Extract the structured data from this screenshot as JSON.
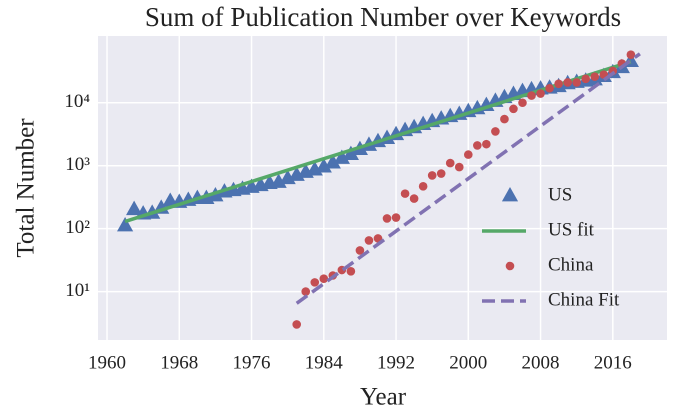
{
  "chart_data": {
    "type": "scatter",
    "title": "Sum of Publication Number over Keywords",
    "xlabel": "Year",
    "ylabel": "Total Number",
    "log_y": true,
    "grid": true,
    "legend": "lower right",
    "xlim": [
      1959,
      2022
    ],
    "xticks": [
      1960,
      1968,
      1976,
      1984,
      1992,
      2000,
      2008,
      2016
    ],
    "ylim": [
      1.7,
      115000
    ],
    "yticks": [
      {
        "value": 10,
        "label": "10¹"
      },
      {
        "value": 100,
        "label": "10²"
      },
      {
        "value": 1000,
        "label": "10³"
      },
      {
        "value": 10000,
        "label": "10⁴"
      }
    ],
    "series": [
      {
        "name": "US",
        "color": "#4c72b0",
        "marker": "triangle",
        "x": [
          1962,
          1963,
          1964,
          1965,
          1966,
          1967,
          1968,
          1969,
          1970,
          1971,
          1972,
          1973,
          1974,
          1975,
          1976,
          1977,
          1978,
          1979,
          1980,
          1981,
          1982,
          1983,
          1984,
          1985,
          1986,
          1987,
          1988,
          1989,
          1990,
          1991,
          1992,
          1993,
          1994,
          1995,
          1996,
          1997,
          1998,
          1999,
          2000,
          2001,
          2002,
          2003,
          2004,
          2005,
          2006,
          2007,
          2008,
          2009,
          2010,
          2011,
          2012,
          2013,
          2014,
          2015,
          2016,
          2017,
          2018
        ],
        "values": [
          110,
          200,
          170,
          175,
          210,
          270,
          260,
          280,
          300,
          300,
          330,
          380,
          400,
          420,
          450,
          480,
          520,
          540,
          620,
          700,
          780,
          850,
          950,
          1100,
          1300,
          1500,
          1800,
          2100,
          2400,
          2700,
          3100,
          3600,
          4000,
          4500,
          5000,
          5500,
          6000,
          6500,
          7200,
          8000,
          9000,
          10500,
          12000,
          13500,
          15000,
          16000,
          16500,
          17000,
          18000,
          20000,
          21000,
          22000,
          23000,
          26000,
          30000,
          36000,
          45000
        ]
      },
      {
        "name": "US fit",
        "color": "#55a868",
        "line": "solid",
        "x": [
          1962,
          2018
        ],
        "values": [
          130,
          45000
        ]
      },
      {
        "name": "China",
        "color": "#c44e52",
        "marker": "circle",
        "x": [
          1981,
          1982,
          1983,
          1984,
          1985,
          1986,
          1987,
          1988,
          1989,
          1990,
          1991,
          1992,
          1993,
          1994,
          1995,
          1996,
          1997,
          1998,
          1999,
          2000,
          2001,
          2002,
          2003,
          2004,
          2005,
          2006,
          2007,
          2008,
          2009,
          2010,
          2011,
          2012,
          2013,
          2014,
          2015,
          2016,
          2017,
          2018
        ],
        "values": [
          3,
          10,
          14,
          16,
          18,
          22,
          21,
          45,
          65,
          70,
          145,
          150,
          360,
          300,
          470,
          700,
          750,
          1100,
          950,
          1500,
          2100,
          2200,
          3500,
          5500,
          8000,
          10000,
          13000,
          14000,
          17000,
          20000,
          21000,
          21000,
          24000,
          26000,
          28000,
          32000,
          42000,
          58000
        ]
      },
      {
        "name": "China Fit",
        "color": "#8172b2",
        "line": "dashed",
        "x": [
          1981,
          2019
        ],
        "values": [
          6.5,
          60000
        ]
      }
    ]
  }
}
